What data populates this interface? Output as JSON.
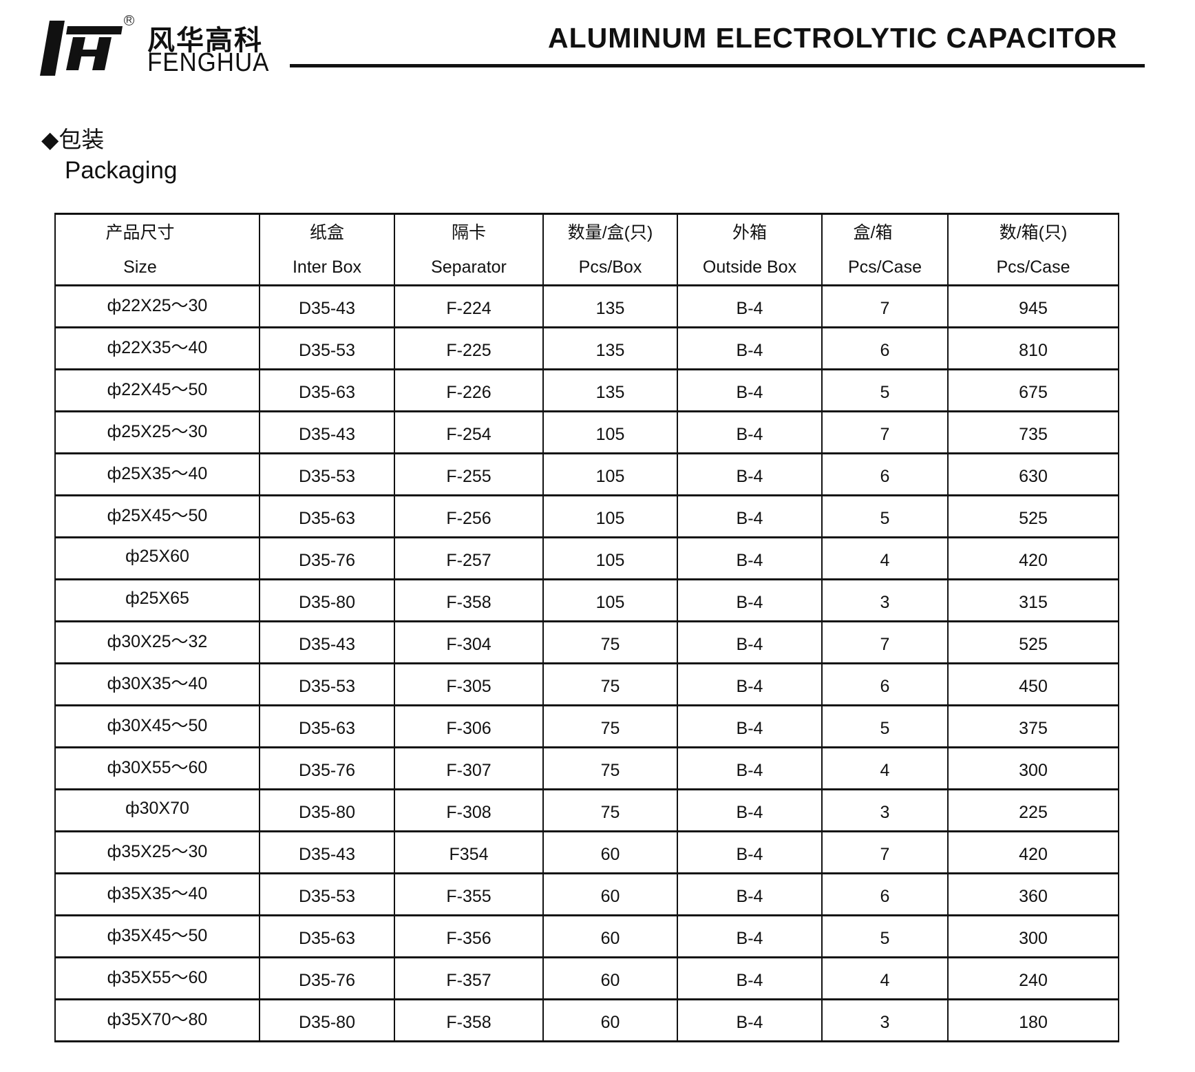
{
  "brand": {
    "name_cn": "风华高科",
    "name_en": "FENGHUA",
    "registered": "R"
  },
  "header": {
    "title": "ALUMINUM ELECTROLYTIC CAPACITOR"
  },
  "section": {
    "bullet": "◆",
    "title_cn": "包装",
    "title_en": "Packaging"
  },
  "table": {
    "columns": [
      {
        "cn": "产品尺寸",
        "en": "Size"
      },
      {
        "cn": "纸盒",
        "en": "Inter Box"
      },
      {
        "cn": "隔卡",
        "en": "Separator"
      },
      {
        "cn": "数量/盒(只)",
        "en": "Pcs/Box"
      },
      {
        "cn": "外箱",
        "en": "Outside Box"
      },
      {
        "cn": "盒/箱",
        "en": "Pcs/Case"
      },
      {
        "cn": "数/箱(只)",
        "en": "Pcs/Case"
      }
    ],
    "rows": [
      [
        "ф22X25～30",
        "D35-43",
        "F-224",
        "135",
        "B-4",
        "7",
        "945"
      ],
      [
        "ф22X35～40",
        "D35-53",
        "F-225",
        "135",
        "B-4",
        "6",
        "810"
      ],
      [
        "ф22X45～50",
        "D35-63",
        "F-226",
        "135",
        "B-4",
        "5",
        "675"
      ],
      [
        "ф25X25～30",
        "D35-43",
        "F-254",
        "105",
        "B-4",
        "7",
        "735"
      ],
      [
        "ф25X35～40",
        "D35-53",
        "F-255",
        "105",
        "B-4",
        "6",
        "630"
      ],
      [
        "ф25X45～50",
        "D35-63",
        "F-256",
        "105",
        "B-4",
        "5",
        "525"
      ],
      [
        "ф25X60",
        "D35-76",
        "F-257",
        "105",
        "B-4",
        "4",
        "420"
      ],
      [
        "ф25X65",
        "D35-80",
        "F-358",
        "105",
        "B-4",
        "3",
        "315"
      ],
      [
        "ф30X25～32",
        "D35-43",
        "F-304",
        "75",
        "B-4",
        "7",
        "525"
      ],
      [
        "ф30X35～40",
        "D35-53",
        "F-305",
        "75",
        "B-4",
        "6",
        "450"
      ],
      [
        "ф30X45～50",
        "D35-63",
        "F-306",
        "75",
        "B-4",
        "5",
        "375"
      ],
      [
        "ф30X55～60",
        "D35-76",
        "F-307",
        "75",
        "B-4",
        "4",
        "300"
      ],
      [
        "ф30X70",
        "D35-80",
        "F-308",
        "75",
        "B-4",
        "3",
        "225"
      ],
      [
        "ф35X25～30",
        "D35-43",
        "F354",
        "60",
        "B-4",
        "7",
        "420"
      ],
      [
        "ф35X35～40",
        "D35-53",
        "F-355",
        "60",
        "B-4",
        "6",
        "360"
      ],
      [
        "ф35X45～50",
        "D35-63",
        "F-356",
        "60",
        "B-4",
        "5",
        "300"
      ],
      [
        "ф35X55～60",
        "D35-76",
        "F-357",
        "60",
        "B-4",
        "4",
        "240"
      ],
      [
        "ф35X70～80",
        "D35-80",
        "F-358",
        "60",
        "B-4",
        "3",
        "180"
      ]
    ]
  }
}
